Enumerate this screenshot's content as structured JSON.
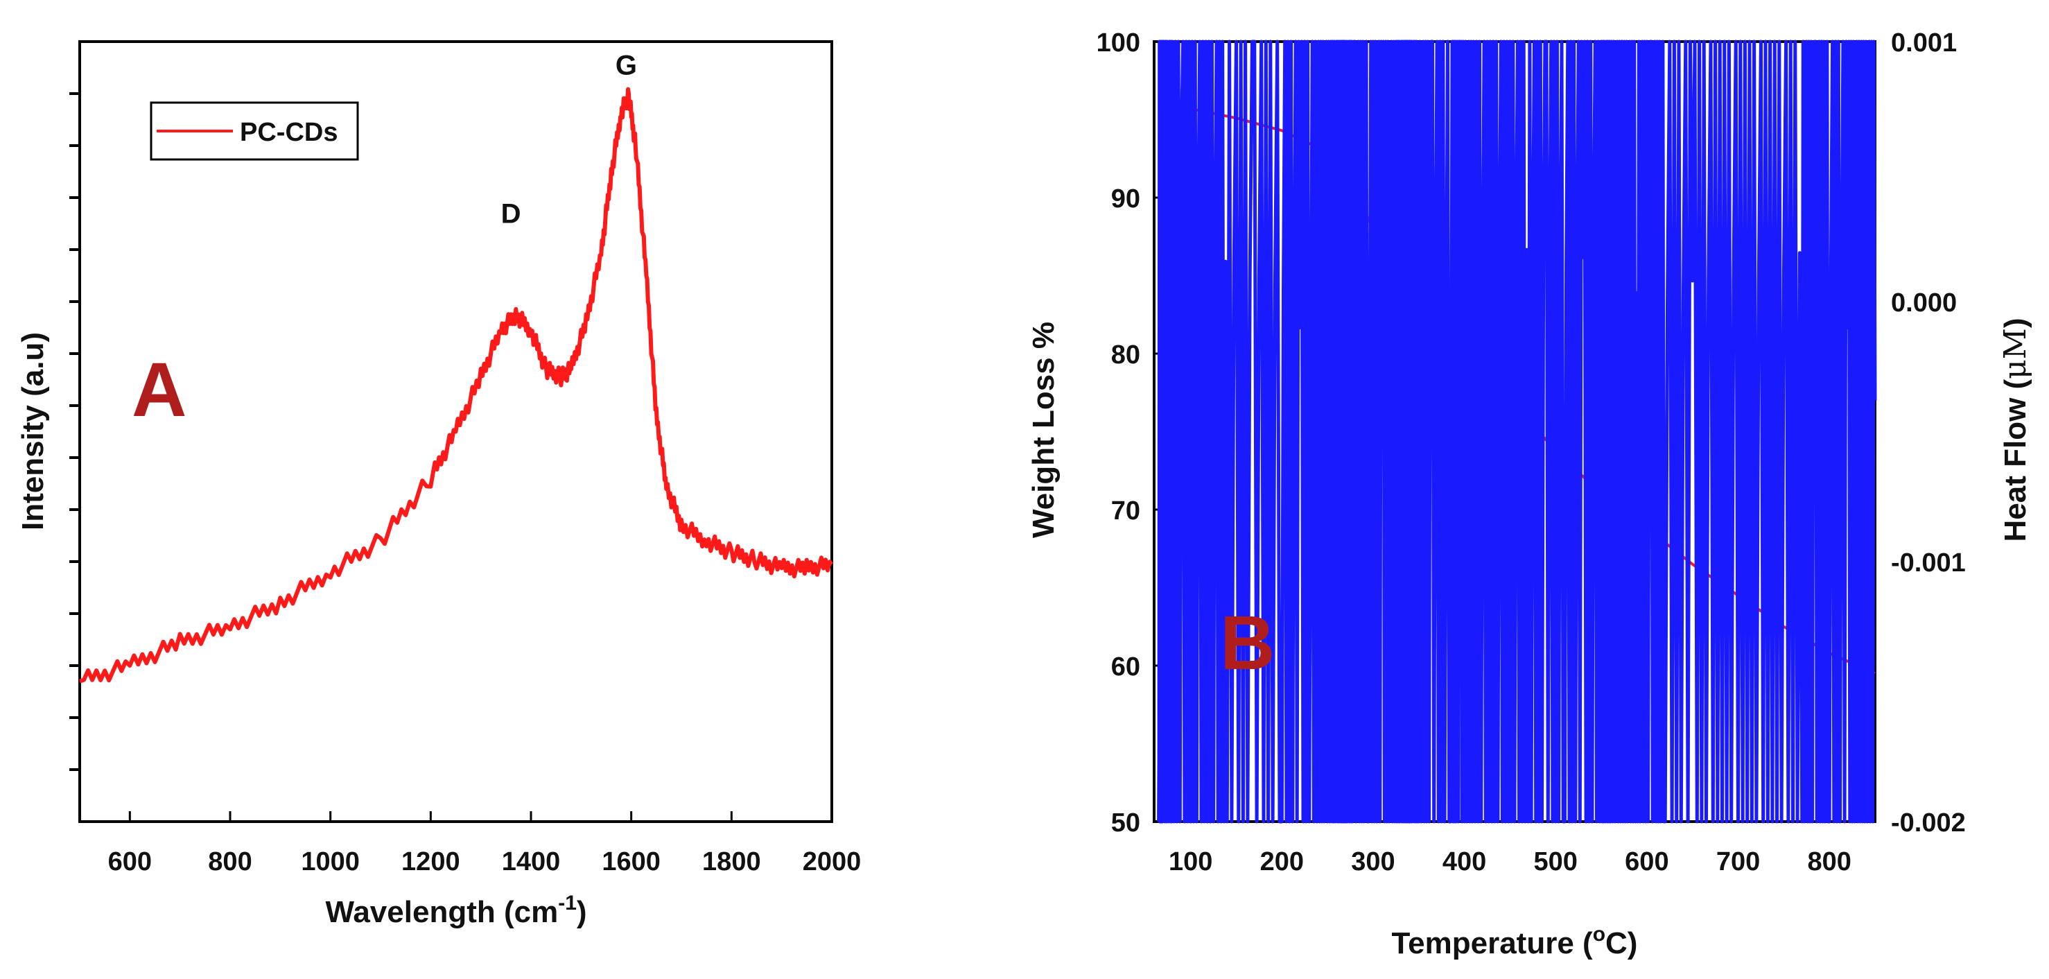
{
  "chart_data": [
    {
      "type": "line",
      "panel_label": "A",
      "xlabel_main": "Wavelength (cm",
      "xlabel_sup": "-1",
      "xlabel_end": ")",
      "ylabel": "Intensity (a.u)",
      "xlim": [
        500,
        2000
      ],
      "ylim": [
        0,
        100
      ],
      "x_ticks": [
        600,
        800,
        1000,
        1200,
        1400,
        1600,
        1800,
        2000
      ],
      "legend": [
        "PC-CDs"
      ],
      "legend_position": "top-left",
      "color": "#ff1a1a",
      "annotations": [
        {
          "text": "D",
          "x": 1360,
          "y": 75
        },
        {
          "text": "G",
          "x": 1590,
          "y": 94
        }
      ],
      "series": [
        {
          "name": "PC-CDs",
          "x": [
            500,
            600,
            700,
            800,
            900,
            1000,
            1100,
            1200,
            1250,
            1300,
            1340,
            1370,
            1400,
            1430,
            1460,
            1480,
            1510,
            1540,
            1560,
            1580,
            1595,
            1610,
            1630,
            1650,
            1670,
            1700,
            1750,
            1800,
            1850,
            1900,
            1950,
            2000
          ],
          "y": [
            18,
            20,
            23,
            25,
            28,
            32,
            36,
            44,
            50,
            57,
            63,
            65,
            63,
            58,
            57,
            58,
            64,
            73,
            83,
            91,
            93,
            86,
            70,
            52,
            43,
            38,
            36,
            34.5,
            33.5,
            32.5,
            32.5,
            33
          ]
        }
      ]
    },
    {
      "type": "line",
      "panel_label": "B",
      "xlabel_main": "Temperature (",
      "xlabel_sup": "o",
      "xlabel_end": "C)",
      "ylabel": "Weight Loss %",
      "ylabel2_main": "Heat Flow (",
      "ylabel2_unit": "μM",
      "ylabel2_end": ")",
      "xlim": [
        60,
        850
      ],
      "ylim": [
        50,
        100
      ],
      "y2lim": [
        -0.002,
        0.001
      ],
      "x_ticks": [
        100,
        200,
        300,
        400,
        500,
        600,
        700,
        800
      ],
      "y_ticks": [
        50,
        60,
        70,
        80,
        90,
        100
      ],
      "y2_ticks": [
        -0.002,
        -0.001,
        0.0,
        0.001
      ],
      "y2_tick_labels": [
        "-0.002",
        "-0.001",
        "0.000",
        "0.001"
      ],
      "series": [
        {
          "name": "Weight Loss %",
          "axis": "left",
          "color": "#ff1a1a",
          "x": [
            65,
            100,
            150,
            200,
            240,
            270,
            300,
            330,
            360,
            400,
            450,
            500,
            550,
            600,
            650,
            700,
            750,
            800,
            850
          ],
          "y": [
            96.5,
            95.7,
            95.1,
            94.3,
            93.2,
            91.5,
            88,
            85,
            83,
            80.5,
            77,
            73.8,
            71,
            68.8,
            66.5,
            64.5,
            62.5,
            60.8,
            59.5
          ]
        },
        {
          "name": "Heat Flow",
          "axis": "right",
          "color": "#1a1aff",
          "x": [
            65,
            70,
            80,
            100,
            120,
            140,
            170,
            200,
            220,
            240,
            255,
            265,
            270,
            280,
            295,
            310,
            325,
            335,
            340,
            350,
            365,
            385,
            395,
            410,
            430,
            450,
            470,
            490,
            510,
            530,
            550,
            560,
            575,
            590,
            605,
            620,
            650,
            680,
            710,
            740,
            770,
            785,
            800,
            820,
            835,
            850
          ],
          "y": [
            -0.002,
            0.001,
            0.0009,
            0.0004,
            0.0002,
            0.00015,
            0.0001,
            5e-05,
            -0.0001,
            -0.0006,
            -0.0012,
            -0.00145,
            -0.00143,
            -0.0011,
            -0.0003,
            0.0004,
            0.0008,
            0.00095,
            0.00093,
            0.0007,
            0.0001,
            -0.00027,
            -0.00028,
            -0.0002,
            0.0001,
            0.00019,
            0.0002,
            0.00015,
            0.00014,
            0.00017,
            0.00028,
            0.0003,
            0.00018,
            2e-05,
            -7e-05,
            -3e-05,
            8e-05,
            8e-05,
            6e-05,
            5e-05,
            0.0002,
            0.00021,
            0.00015,
            -0.0001,
            -0.0003,
            -0.00038
          ]
        }
      ]
    }
  ]
}
